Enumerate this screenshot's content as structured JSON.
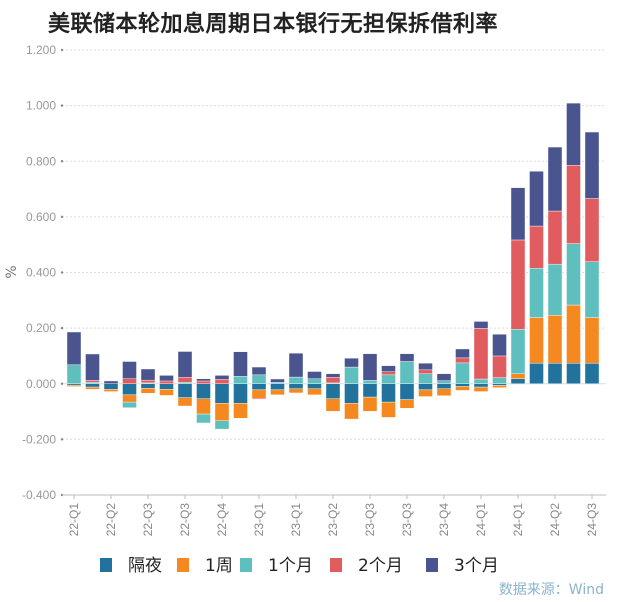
{
  "chart_data": {
    "type": "bar",
    "stacked": true,
    "title": "美联储本轮加息周期日本银行无担保拆借利率",
    "ylabel": "%",
    "xlabel": "",
    "ylim": [
      -0.4,
      1.2
    ],
    "yticks": [
      1.2,
      1.0,
      0.8,
      0.6,
      0.4,
      0.2,
      0.0,
      -0.2,
      -0.4
    ],
    "grid": true,
    "legend_position": "bottom",
    "bar_count": 29,
    "tick_every": 2,
    "tick_labels": [
      "22-Q1",
      "22-Q2",
      "22-Q3",
      "22-Q3",
      "22-Q4",
      "23-Q1",
      "23-Q1",
      "23-Q2",
      "23-Q3",
      "23-Q3",
      "23-Q4",
      "24-Q1",
      "24-Q1",
      "24-Q2",
      "24-Q3"
    ],
    "series": [
      {
        "name": "隔夜",
        "color": "#21739e",
        "values": [
          -0.005,
          -0.012,
          -0.02,
          -0.04,
          -0.016,
          -0.02,
          -0.05,
          -0.054,
          -0.07,
          -0.07,
          -0.022,
          -0.022,
          -0.018,
          -0.018,
          -0.054,
          -0.07,
          -0.048,
          -0.066,
          -0.057,
          -0.022,
          -0.018,
          -0.01,
          -0.012,
          -0.006,
          0.018,
          0.074,
          0.074,
          0.074,
          0.074
        ]
      },
      {
        "name": "1周",
        "color": "#f5891f",
        "values": [
          -0.005,
          -0.008,
          -0.008,
          -0.026,
          -0.018,
          -0.022,
          -0.03,
          -0.055,
          -0.063,
          -0.054,
          -0.03,
          -0.018,
          -0.015,
          -0.022,
          -0.045,
          -0.057,
          -0.051,
          -0.055,
          -0.031,
          -0.024,
          -0.025,
          -0.014,
          -0.016,
          -0.008,
          0.018,
          0.164,
          0.172,
          0.209,
          0.164
        ]
      },
      {
        "name": "1个月",
        "color": "#5fbfbf",
        "values": [
          0.068,
          0.005,
          0,
          -0.02,
          0.003,
          0,
          0.005,
          -0.032,
          -0.03,
          0.027,
          0.032,
          0.005,
          0.024,
          0.018,
          0.003,
          0.06,
          0.012,
          0.032,
          0.08,
          0.036,
          0.011,
          0.075,
          0.017,
          0.022,
          0.16,
          0.177,
          0.184,
          0.221,
          0.201
        ]
      },
      {
        "name": "2个月",
        "color": "#e05c5f",
        "values": [
          0,
          0.007,
          0,
          0.018,
          0.01,
          0.01,
          0.018,
          0.01,
          0.016,
          0,
          -0.004,
          0,
          0,
          0,
          0.02,
          0,
          0,
          0.011,
          0,
          0.014,
          0,
          0.018,
          0.182,
          0.078,
          0.321,
          0.152,
          0.191,
          0.281,
          0.227
        ]
      },
      {
        "name": "3个月",
        "color": "#4a5590",
        "values": [
          0.118,
          0.095,
          0.01,
          0.062,
          0.04,
          0.02,
          0.093,
          0.008,
          0.014,
          0.088,
          0.028,
          0.012,
          0.086,
          0.026,
          0.013,
          0.032,
          0.096,
          0.022,
          0.028,
          0.024,
          0.025,
          0.032,
          0.025,
          0.078,
          0.188,
          0.197,
          0.23,
          0.224,
          0.239
        ]
      }
    ],
    "source": "数据来源：Wind"
  }
}
